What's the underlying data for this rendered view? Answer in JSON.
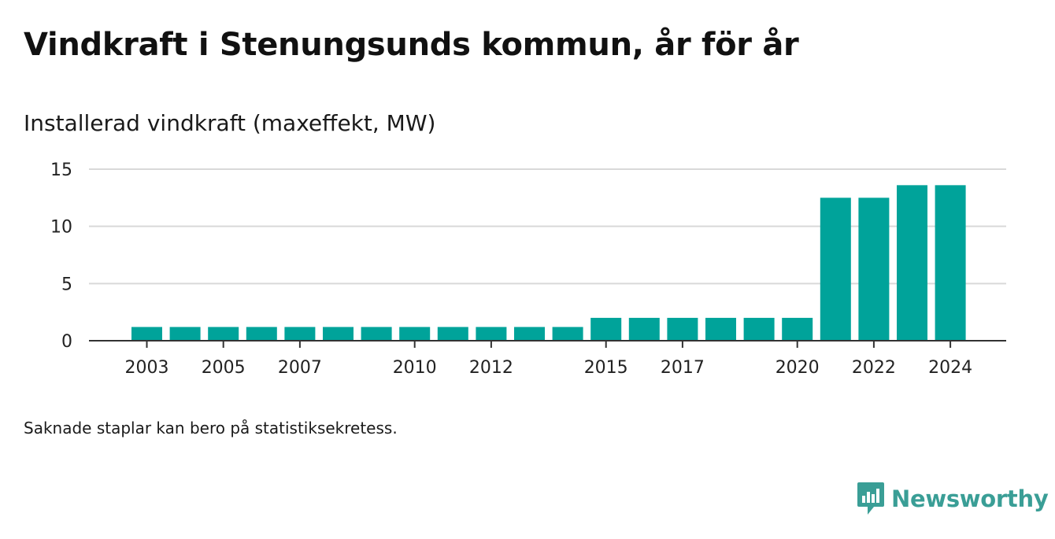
{
  "header": {
    "title": "Vindkraft i Stenungsunds kommun, år för år"
  },
  "footer": {
    "note": "Saknade staplar kan bero på statistiksekretess.",
    "brand_name": "Newsworthy",
    "brand_icon": "chat-bar-chart-icon"
  },
  "colors": {
    "bar": "#00a39a",
    "grid": "#d9d9d9",
    "axis": "#333333",
    "brand": "#3a9e96"
  },
  "chart_data": {
    "type": "bar",
    "title": "Vindkraft i Stenungsunds kommun, år för år",
    "ylabel": "Installerad vindkraft (maxeffekt, MW)",
    "xlabel": "",
    "categories": [
      "2003",
      "2004",
      "2005",
      "2006",
      "2007",
      "2008",
      "2009",
      "2010",
      "2011",
      "2012",
      "2013",
      "2014",
      "2015",
      "2016",
      "2017",
      "2018",
      "2019",
      "2020",
      "2021",
      "2022",
      "2023",
      "2024"
    ],
    "values": [
      1.2,
      1.2,
      1.2,
      1.2,
      1.2,
      1.2,
      1.2,
      1.2,
      1.2,
      1.2,
      1.2,
      1.2,
      2,
      2,
      2,
      2,
      2,
      2,
      12.5,
      12.5,
      13.6,
      13.6
    ],
    "x_tick_labels": [
      "2003",
      "2005",
      "2007",
      "2010",
      "2012",
      "2015",
      "2017",
      "2020",
      "2022",
      "2024"
    ],
    "y_ticks": [
      "0",
      "5",
      "10",
      "15"
    ],
    "ylim": [
      0,
      15
    ],
    "grid": true,
    "legend": "none"
  }
}
